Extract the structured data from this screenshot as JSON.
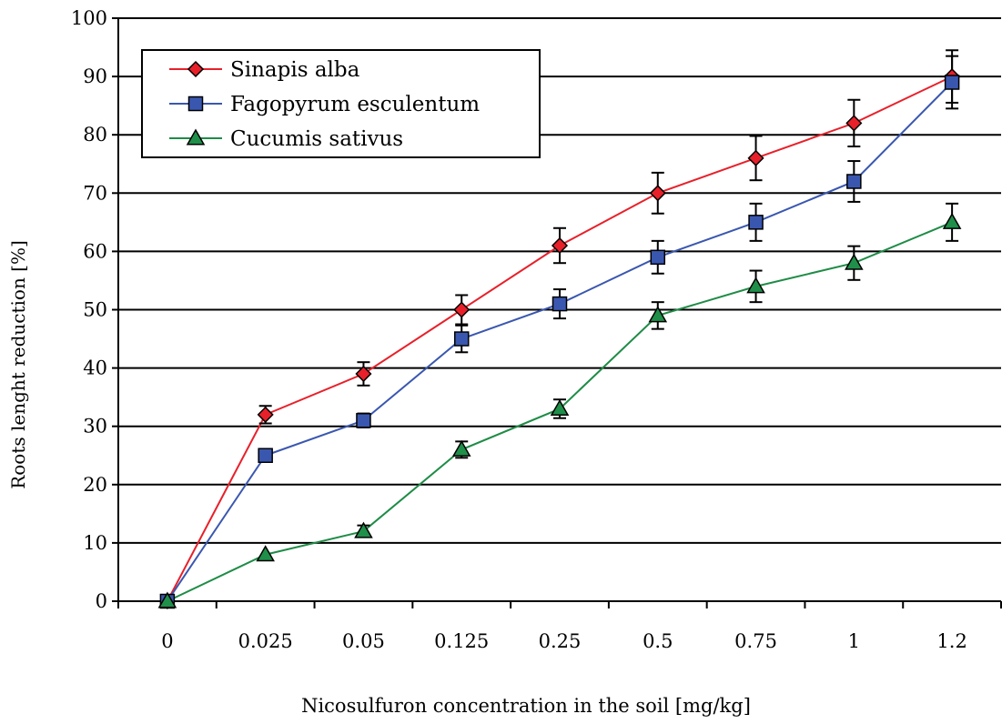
{
  "chart_data": {
    "type": "line",
    "title": "",
    "xlabel": "Nicosulfuron concentration in the soil [mg/kg]",
    "ylabel": "Roots lenght reduction [%]",
    "categories": [
      "0",
      "0.025",
      "0.05",
      "0.125",
      "0.25",
      "0.5",
      "0.75",
      "1",
      "1.2"
    ],
    "ylim": [
      0,
      100
    ],
    "yticks": [
      "0",
      "10",
      "20",
      "30",
      "40",
      "50",
      "60",
      "70",
      "80",
      "90",
      "100"
    ],
    "grid": "horizontal",
    "legend_position": "top-left",
    "series": [
      {
        "name": "Sinapis alba",
        "color": "#e8202a",
        "marker": "diamond",
        "marker_color": "#e8202a",
        "values": [
          0,
          32,
          39,
          50,
          61,
          70,
          76,
          82,
          90
        ],
        "errors": [
          0,
          1.5,
          2,
          2.5,
          3,
          3.5,
          3.8,
          4,
          4.5
        ]
      },
      {
        "name": "Fagopyrum esculentum",
        "color": "#3a57b0",
        "marker": "square",
        "marker_color": "#3a57b0",
        "values": [
          0,
          25,
          31,
          45,
          51,
          59,
          65,
          72,
          89
        ],
        "errors": [
          0,
          0,
          1.2,
          2.3,
          2.5,
          2.8,
          3.2,
          3.5,
          4.5
        ]
      },
      {
        "name": "Cucumis sativus",
        "color": "#1e8c46",
        "marker": "triangle",
        "marker_color": "#1f8f4a",
        "values": [
          0,
          8,
          12,
          26,
          33,
          49,
          54,
          58,
          65
        ],
        "errors": [
          0,
          0,
          1,
          1.4,
          1.6,
          2.3,
          2.7,
          2.9,
          3.2
        ]
      }
    ]
  }
}
